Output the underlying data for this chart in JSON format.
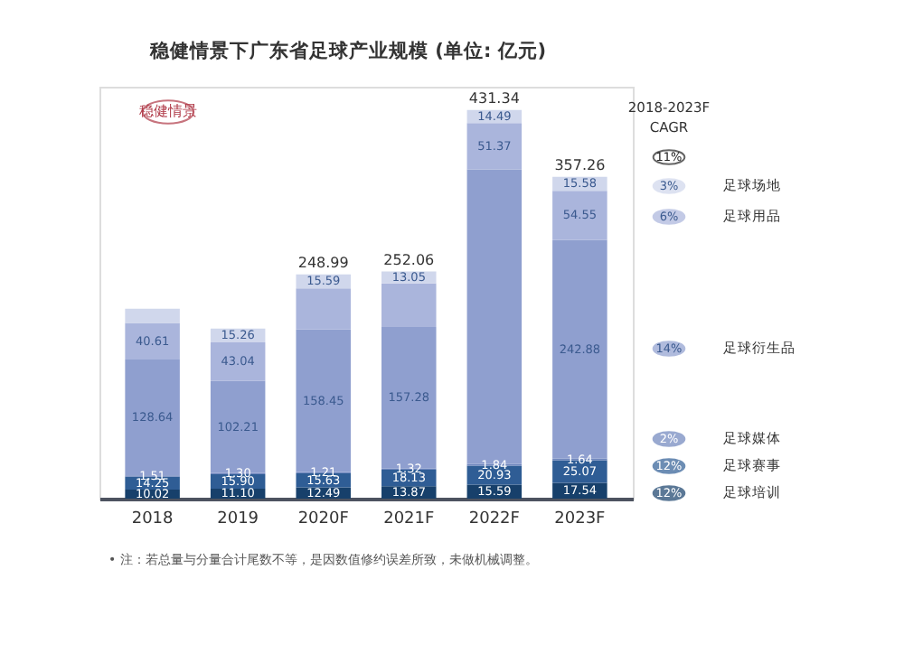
{
  "chart_data": {
    "type": "bar",
    "stacked": true,
    "title": "稳健情景下广东省足球产业规模 (单位: 亿元)",
    "categories": [
      "2018",
      "2019",
      "2020F",
      "2021F",
      "2022F",
      "2023F"
    ],
    "series": [
      {
        "name": "足球培训",
        "color": "#17406b",
        "values": [
          10.02,
          11.1,
          12.49,
          13.87,
          15.59,
          17.54
        ],
        "value_labels": [
          "10.02",
          "11.10",
          "12.49",
          "13.87",
          "15.59",
          "17.54"
        ]
      },
      {
        "name": "足球赛事",
        "color": "#2f5d95",
        "values": [
          14.25,
          15.9,
          15.63,
          18.13,
          20.93,
          25.07
        ],
        "value_labels": [
          "14.25",
          "15.90",
          "15.63",
          "18.13",
          "20.93",
          "25.07"
        ]
      },
      {
        "name": "足球媒体",
        "color": "#6f86bd",
        "values": [
          1.51,
          1.3,
          1.21,
          1.32,
          1.84,
          1.64
        ],
        "value_labels": [
          "1.51",
          "1.30",
          "1.21",
          "1.32",
          "1.84",
          "1.64"
        ]
      },
      {
        "name": "足球衍生品",
        "color": "#8f9fcf",
        "values": [
          128.64,
          102.21,
          158.45,
          157.28,
          327.12,
          242.88
        ],
        "value_labels": [
          "128.64",
          "102.21",
          "158.45",
          "157.28",
          null,
          "242.88"
        ]
      },
      {
        "name": "足球用品",
        "color": "#aab5dc",
        "values": [
          40.61,
          43.04,
          45.62,
          48.41,
          51.37,
          54.55
        ],
        "value_labels": [
          "40.61",
          "43.04",
          null,
          null,
          "51.37",
          "54.55"
        ]
      },
      {
        "name": "足球场地",
        "color": "#d0d7ec",
        "values": [
          15.68,
          15.26,
          15.59,
          13.05,
          14.49,
          15.58
        ],
        "value_labels": [
          null,
          "15.26",
          "15.59",
          "13.05",
          "14.49",
          "15.58"
        ]
      }
    ],
    "totals": [
      null,
      null,
      "248.99",
      "252.06",
      "431.34",
      "357.26"
    ],
    "legend": "right",
    "legend_title": "2018-2023F CAGR",
    "grid": false,
    "tick_labels": "x",
    "annotations": [
      "稳健情景",
      "11%",
      "3%",
      "6%",
      "14%",
      "2%",
      "12%",
      "12%",
      "• 注：若总量与分量合计尾数不等，是因数值修约误差所致，未做机械调整。"
    ]
  }
}
